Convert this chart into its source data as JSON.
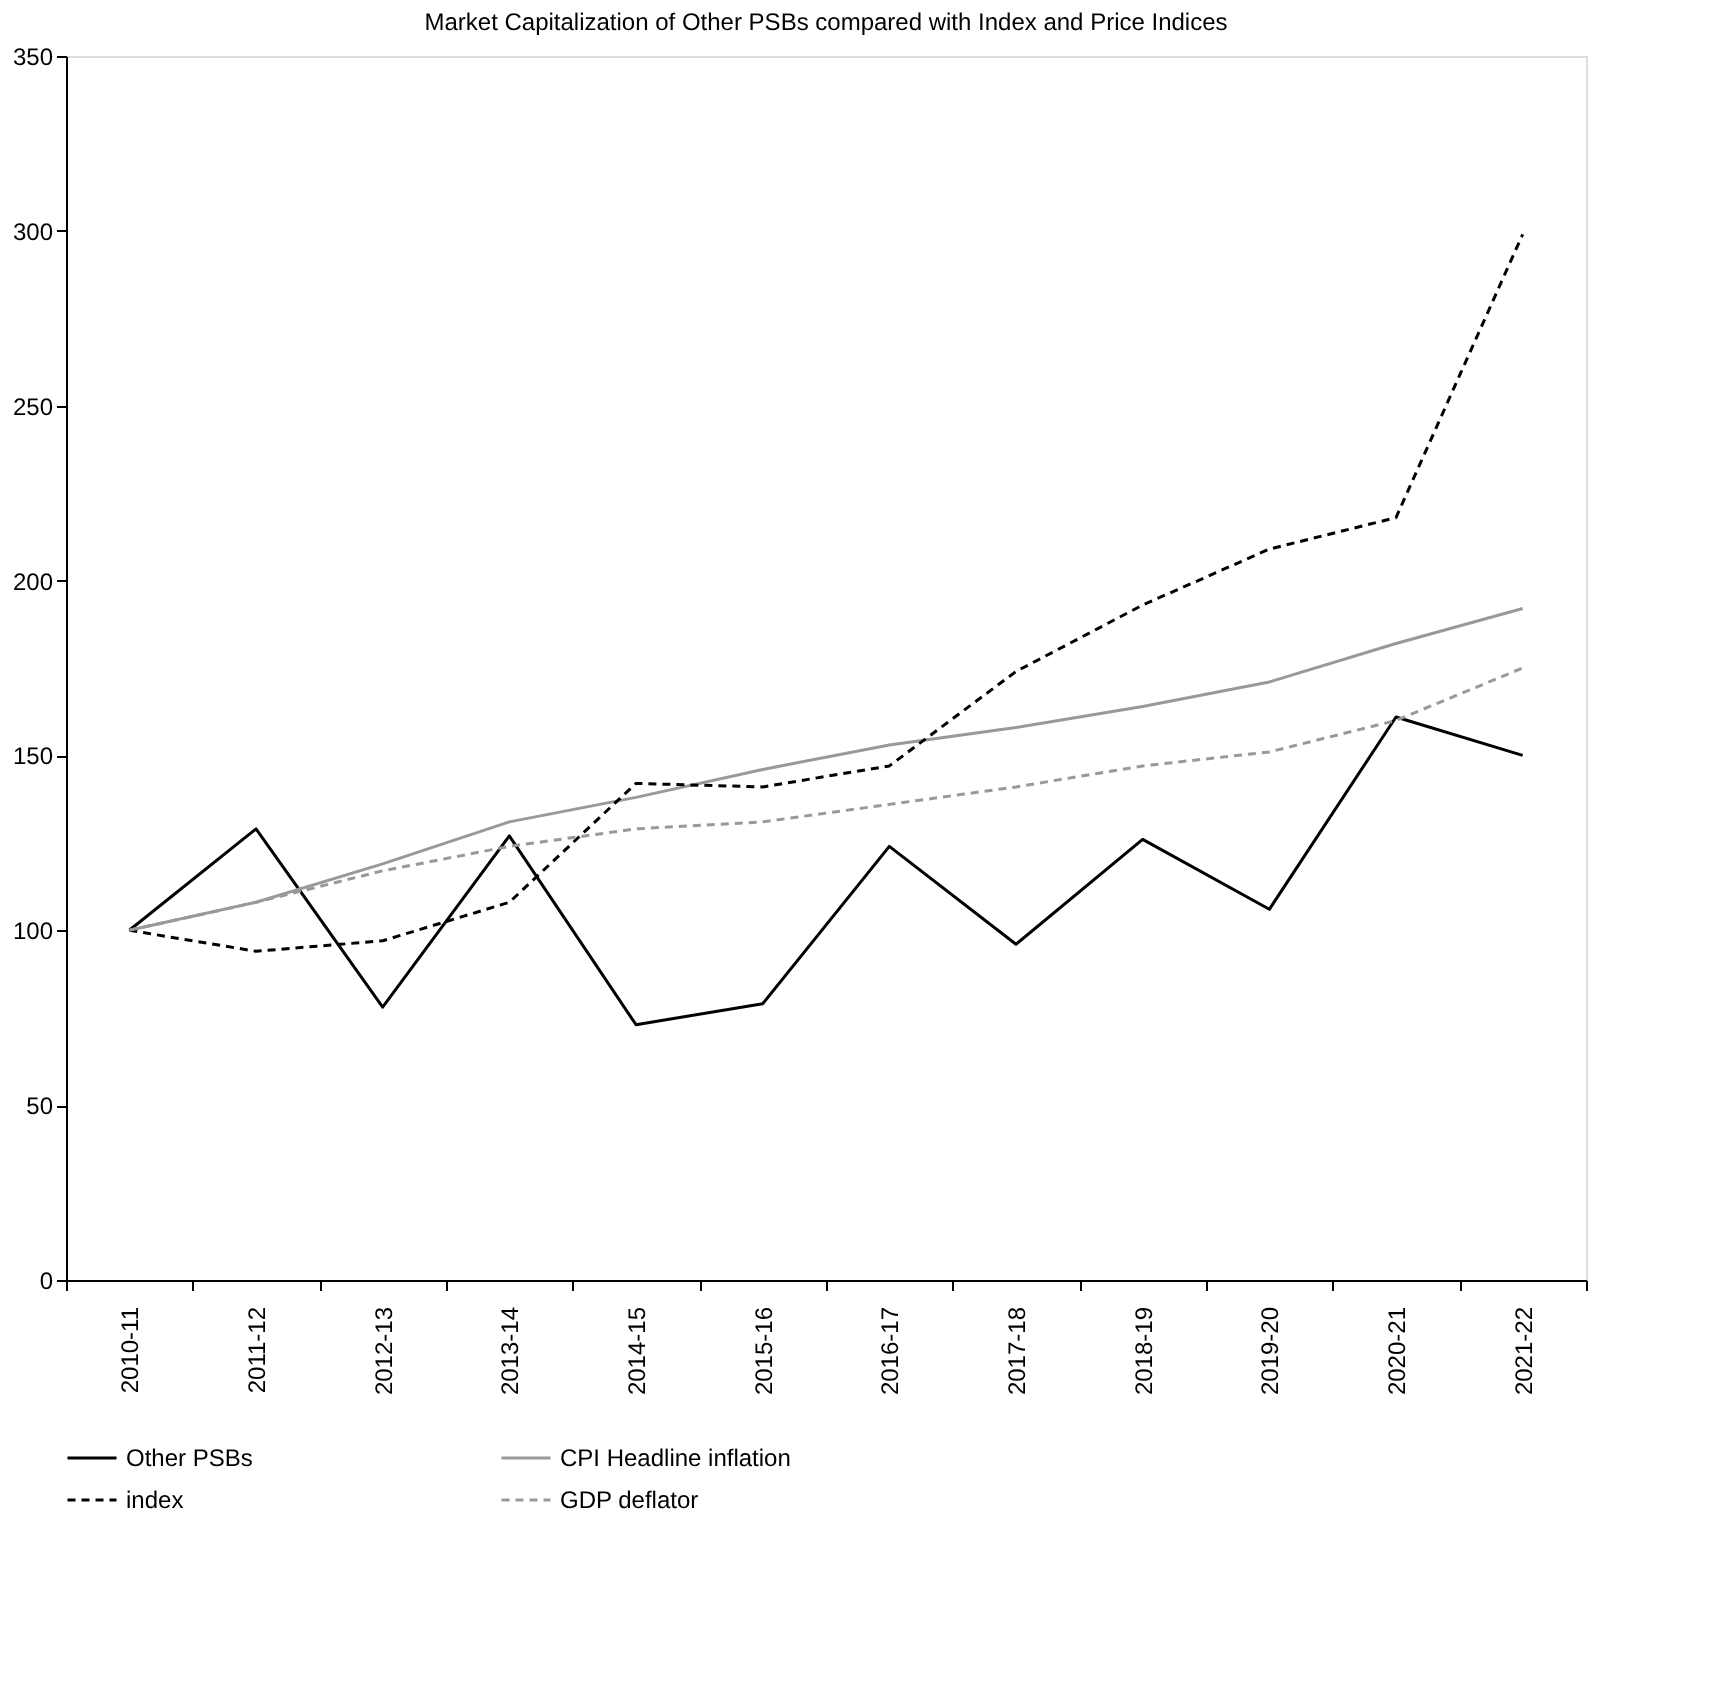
{
  "chart_data": {
    "type": "line",
    "title": "Market Capitalization of Other PSBs compared with Index and Price Indices",
    "categories": [
      "2010-11",
      "2011-12",
      "2012-13",
      "2013-14",
      "2014-15",
      "2015-16",
      "2016-17",
      "2017-18",
      "2018-19",
      "2019-20",
      "2020-21",
      "2021-22"
    ],
    "series": [
      {
        "name": "Other PSBs",
        "color": "#000000",
        "line_style": "solid",
        "values": [
          100,
          129,
          78,
          127,
          73,
          79,
          124,
          96,
          126,
          106,
          161,
          150
        ]
      },
      {
        "name": "CPI Headline inflation",
        "color": "#999999",
        "line_style": "solid",
        "values": [
          100,
          108,
          119,
          131,
          138,
          146,
          153,
          158,
          164,
          171,
          182,
          192
        ]
      },
      {
        "name": "index",
        "color": "#000000",
        "line_style": "dashed",
        "values": [
          100,
          94,
          97,
          108,
          142,
          141,
          147,
          174,
          193,
          209,
          218,
          299
        ]
      },
      {
        "name": "GDP deflator",
        "color": "#999999",
        "line_style": "dashed",
        "values": [
          100,
          108,
          117,
          124,
          129,
          131,
          136,
          141,
          147,
          151,
          160,
          175
        ]
      }
    ],
    "ylim": [
      0,
      350
    ],
    "yticks": [
      0,
      50,
      100,
      150,
      200,
      250,
      300,
      350
    ],
    "grid": false,
    "legend": "bottom",
    "marker": "none"
  }
}
